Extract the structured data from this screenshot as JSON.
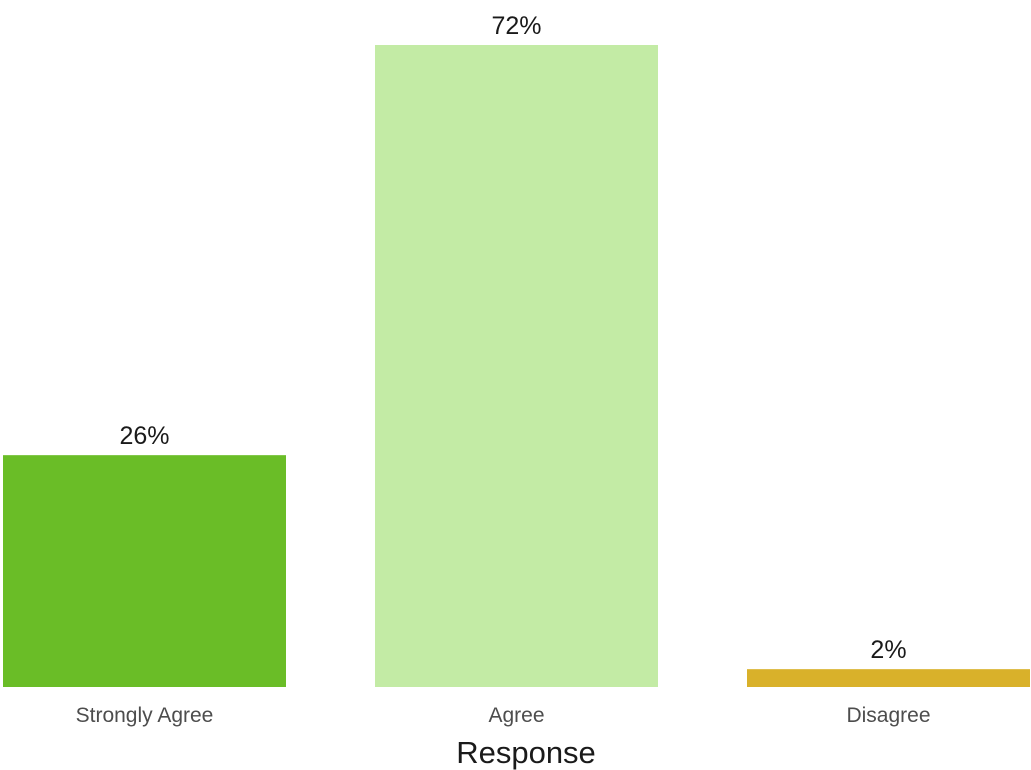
{
  "chart_data": {
    "type": "bar",
    "categories": [
      "Strongly Agree",
      "Agree",
      "Disagree"
    ],
    "values": [
      26,
      72,
      2
    ],
    "value_labels": [
      "26%",
      "72%",
      "2%"
    ],
    "colors": [
      "#6abd27",
      "#c3eba5",
      "#d9b12a"
    ],
    "title": "",
    "xlabel": "Response",
    "ylabel": "",
    "ylim": [
      0,
      72
    ],
    "grid": false,
    "legend": "none"
  }
}
